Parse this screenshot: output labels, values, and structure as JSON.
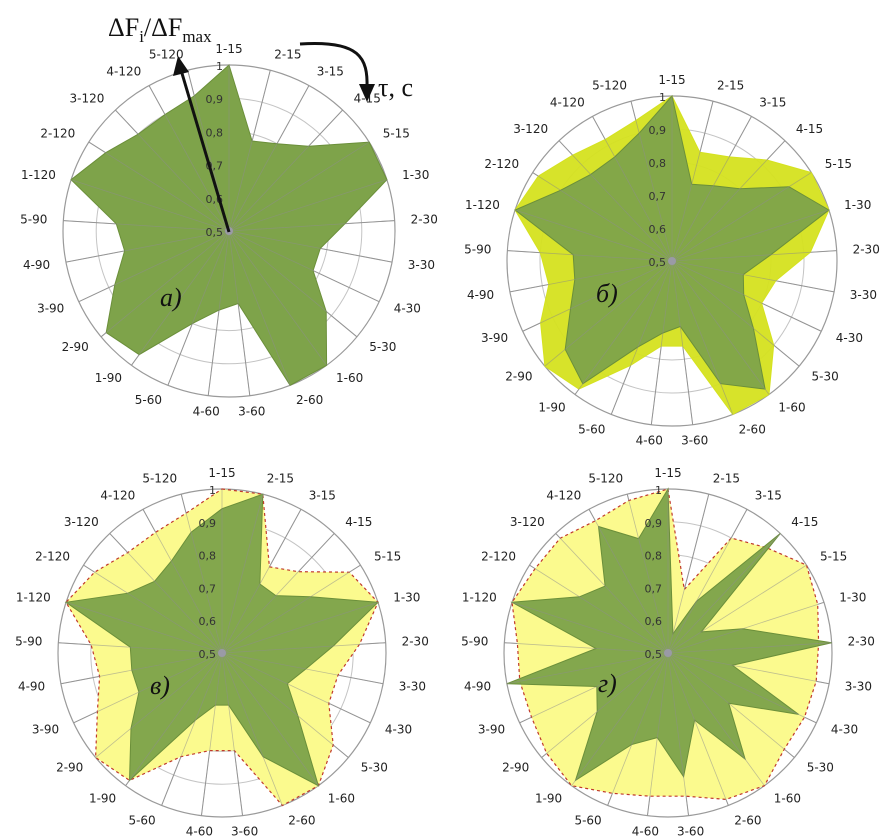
{
  "annotations": {
    "axis_title_main": "ΔF",
    "axis_title_sub1": "i",
    "axis_title_mid": "/ΔF",
    "axis_title_sub2": "max",
    "time_label": "τ, с"
  },
  "colors": {
    "green_fill": "#7ea34a",
    "green_stroke": "#6b8f3a",
    "yellow_fill": "#d5e21f",
    "yellow_fill_light": "#fbfa8e",
    "red_dashed": "#c0392b",
    "grid": "#9a9a9a",
    "text": "#222222"
  },
  "chart_data": [
    {
      "type": "radar",
      "panel_label": "а)",
      "categories": [
        "1-15",
        "2-15",
        "3-15",
        "4-15",
        "5-15",
        "1-30",
        "2-30",
        "3-30",
        "4-30",
        "5-30",
        "1-60",
        "2-60",
        "3-60",
        "4-60",
        "5-60",
        "1-90",
        "2-90",
        "3-90",
        "4-90",
        "5-90",
        "1-120",
        "2-120",
        "3-120",
        "4-120",
        "5-120"
      ],
      "rlim": [
        0.5,
        1.0
      ],
      "r_ticks": [
        "0,5",
        "0,6",
        "0,7",
        "0,8",
        "0,9",
        "1"
      ],
      "series": [
        {
          "values": [
            1.0,
            0.78,
            0.8,
            0.85,
            1.0,
            1.0,
            0.85,
            0.78,
            0.78,
            0.88,
            1.0,
            1.0,
            0.72,
            0.74,
            0.8,
            0.96,
            0.98,
            0.88,
            0.82,
            0.84,
            1.0,
            0.94,
            0.9,
            0.9,
            0.92
          ]
        }
      ]
    },
    {
      "type": "radar",
      "panel_label": "б)",
      "categories": [
        "1-15",
        "2-15",
        "3-15",
        "4-15",
        "5-15",
        "1-30",
        "2-30",
        "3-30",
        "4-30",
        "5-30",
        "1-60",
        "2-60",
        "3-60",
        "4-60",
        "5-60",
        "1-90",
        "2-90",
        "3-90",
        "4-90",
        "5-90",
        "1-120",
        "2-120",
        "3-120",
        "4-120",
        "5-120"
      ],
      "rlim": [
        0.5,
        1.0
      ],
      "r_ticks": [
        "0,5",
        "0,6",
        "0,7",
        "0,8",
        "0,9",
        "1"
      ],
      "series": [
        {
          "values": [
            1.0,
            0.84,
            0.86,
            0.92,
            1.0,
            1.0,
            0.92,
            0.82,
            0.8,
            0.9,
            1.0,
            1.0,
            0.76,
            0.76,
            0.84,
            0.98,
            1.0,
            0.94,
            0.88,
            0.9,
            1.0,
            0.98,
            0.94,
            0.92,
            0.94
          ]
        },
        {
          "values": [
            1.0,
            0.74,
            0.76,
            0.8,
            0.92,
            1.0,
            0.8,
            0.72,
            0.74,
            0.82,
            0.98,
            0.9,
            0.7,
            0.72,
            0.78,
            0.96,
            0.92,
            0.84,
            0.8,
            0.8,
            1.0,
            0.9,
            0.86,
            0.86,
            0.9
          ]
        }
      ]
    },
    {
      "type": "radar",
      "panel_label": "в)",
      "categories": [
        "1-15",
        "2-15",
        "3-15",
        "4-15",
        "5-15",
        "1-30",
        "2-30",
        "3-30",
        "4-30",
        "5-30",
        "1-60",
        "2-60",
        "3-60",
        "4-60",
        "5-60",
        "1-90",
        "2-90",
        "3-90",
        "4-90",
        "5-90",
        "1-120",
        "2-120",
        "3-120",
        "4-120",
        "5-120"
      ],
      "rlim": [
        0.5,
        1.0
      ],
      "r_ticks": [
        "0,5",
        "0,6",
        "0,7",
        "0,8",
        "0,9",
        "1"
      ],
      "series": [
        {
          "values": [
            1.0,
            1.0,
            0.8,
            0.84,
            0.96,
            1.0,
            0.92,
            0.86,
            0.86,
            0.94,
            1.0,
            1.0,
            0.8,
            0.8,
            0.84,
            0.98,
            1.0,
            0.92,
            0.88,
            0.9,
            1.0,
            0.96,
            0.92,
            0.92,
            0.94
          ]
        },
        {
          "values": [
            0.94,
            1.0,
            0.74,
            0.74,
            0.82,
            1.0,
            0.84,
            0.76,
            0.72,
            0.8,
            1.0,
            0.84,
            0.66,
            0.66,
            0.72,
            0.98,
            0.86,
            0.78,
            0.78,
            0.78,
            1.0,
            0.84,
            0.8,
            0.82,
            0.88
          ]
        }
      ]
    },
    {
      "type": "radar",
      "panel_label": "г)",
      "categories": [
        "1-15",
        "2-15",
        "3-15",
        "4-15",
        "5-15",
        "1-30",
        "2-30",
        "3-30",
        "4-30",
        "5-30",
        "1-60",
        "2-60",
        "3-60",
        "4-60",
        "5-60",
        "1-90",
        "2-90",
        "3-90",
        "4-90",
        "5-90",
        "1-120",
        "2-120",
        "3-120",
        "4-120",
        "5-120"
      ],
      "rlim": [
        0.5,
        1.0
      ],
      "r_ticks": [
        "0,5",
        "0,6",
        "0,7",
        "0,8",
        "0,9",
        "1"
      ],
      "series": [
        {
          "values": [
            1.0,
            0.7,
            0.9,
            0.94,
            1.0,
            0.98,
            0.96,
            0.96,
            0.96,
            0.96,
            1.0,
            0.98,
            0.94,
            0.94,
            0.96,
            1.0,
            0.98,
            0.96,
            0.96,
            0.96,
            1.0,
            0.98,
            0.98,
            0.96,
            0.98
          ]
        },
        {
          "values": [
            1.0,
            0.56,
            0.68,
            1.0,
            0.62,
            0.74,
            1.0,
            0.7,
            0.94,
            0.74,
            0.9,
            0.72,
            0.88,
            0.76,
            0.8,
            0.98,
            0.78,
            0.74,
            1.0,
            0.72,
            1.0,
            0.82,
            0.78,
            0.94,
            0.86
          ]
        }
      ]
    }
  ]
}
